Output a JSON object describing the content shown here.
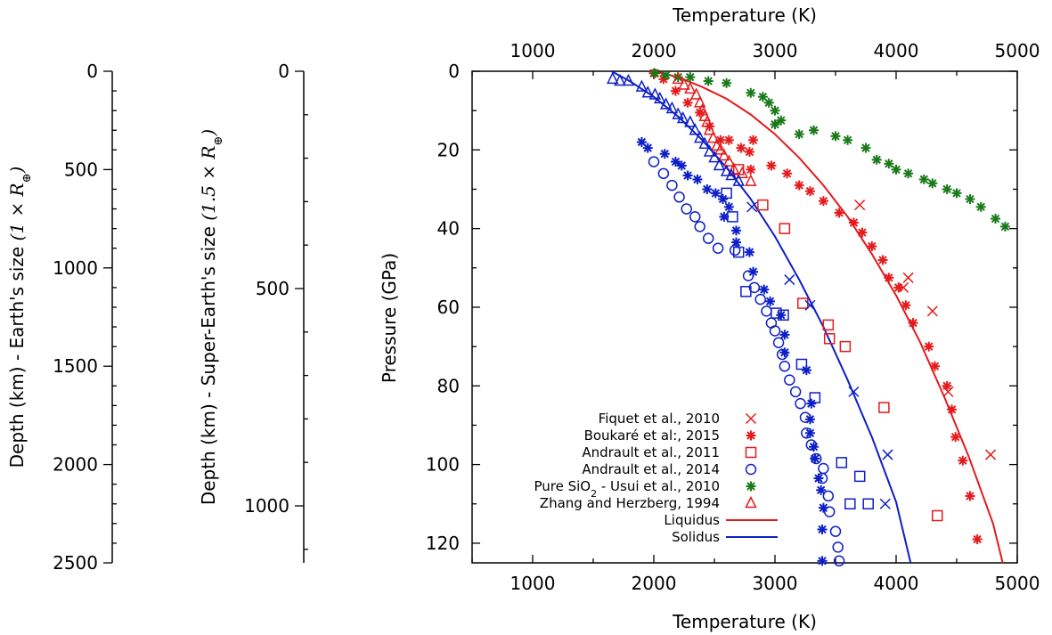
{
  "chart_data": {
    "type": "scatter",
    "xlabel_top": "Temperature (K)",
    "xlabel_bottom": "Temperature (K)",
    "ylabel": "Pressure (GPa)",
    "xlim": [
      500,
      5000
    ],
    "ylim": [
      125,
      0
    ],
    "xticks": [
      1000,
      2000,
      3000,
      4000,
      5000
    ],
    "yticks": [
      0,
      20,
      40,
      60,
      80,
      100,
      120
    ],
    "grid": false,
    "legend_position": "bottom-left",
    "depth_axes": [
      {
        "label": "Depth (km) - Earth's size",
        "label_math": "(1 × R",
        "label_sub": "⊕",
        "label_close": ")",
        "ticks": [
          0,
          500,
          1000,
          1500,
          2000,
          2500
        ],
        "range_km": [
          0,
          2500
        ],
        "minor_step": 100
      },
      {
        "label": "Depth (km) - Super-Earth's size",
        "label_math": "(1.5 × R",
        "label_sub": "⊕",
        "label_close": ")",
        "ticks": [
          0,
          500,
          1000
        ],
        "range_km": [
          0,
          1250
        ],
        "minor_step": 100
      }
    ],
    "series": [
      {
        "name": "Fiquet et al., 2010",
        "marker": "x",
        "color": "#e41a1c",
        "points": [
          [
            3700,
            34
          ],
          [
            4100,
            52.5
          ],
          [
            4060,
            55
          ],
          [
            4300,
            61
          ],
          [
            4430,
            81.5
          ],
          [
            4780,
            97.5
          ]
        ]
      },
      {
        "name": "Boukaré et al:, 2015",
        "name_parts": [
          "Boukaré et al:, 2015"
        ],
        "marker": "asterisk",
        "color": "#e41a1c",
        "points": [
          [
            2000,
            0.5
          ],
          [
            2080,
            2
          ],
          [
            2180,
            5
          ],
          [
            2280,
            8
          ],
          [
            2380,
            10.5
          ],
          [
            2460,
            14
          ],
          [
            2550,
            17.5
          ],
          [
            2620,
            17.5
          ],
          [
            2720,
            19.5
          ],
          [
            2820,
            17.5
          ],
          [
            2790,
            20.5
          ],
          [
            2970,
            24
          ],
          [
            2800,
            25
          ],
          [
            3100,
            26
          ],
          [
            3200,
            29
          ],
          [
            3290,
            30.5
          ],
          [
            3400,
            33
          ],
          [
            3530,
            36
          ],
          [
            3650,
            38.5
          ],
          [
            3720,
            41
          ],
          [
            3800,
            44.5
          ],
          [
            3890,
            48
          ],
          [
            3940,
            52.5
          ],
          [
            4020,
            55
          ],
          [
            4080,
            59.5
          ],
          [
            4140,
            64
          ],
          [
            4270,
            70
          ],
          [
            4320,
            75
          ],
          [
            4420,
            80
          ],
          [
            4460,
            86
          ],
          [
            4490,
            93
          ],
          [
            4550,
            99
          ],
          [
            4610,
            108
          ],
          [
            4670,
            119
          ]
        ]
      },
      {
        "name": "Andrault et al., 2011",
        "marker": "square",
        "color": "#e41a1c",
        "points": [
          [
            2700,
            25
          ],
          [
            2900,
            34
          ],
          [
            3080,
            40
          ],
          [
            3230,
            59
          ],
          [
            3440,
            64.5
          ],
          [
            3450,
            68
          ],
          [
            3580,
            70
          ],
          [
            3900,
            85.5
          ],
          [
            4340,
            113
          ]
        ]
      },
      {
        "name": "Andrault et al., 2014",
        "marker": "circle",
        "color": "#0d1fc7",
        "points": [
          [
            2000,
            23
          ],
          [
            2080,
            26
          ],
          [
            2150,
            29
          ],
          [
            2210,
            32
          ],
          [
            2270,
            35
          ],
          [
            2340,
            37
          ],
          [
            2380,
            39.5
          ],
          [
            2450,
            42.5
          ],
          [
            2530,
            45
          ],
          [
            2670,
            45.5
          ],
          [
            2780,
            52
          ],
          [
            2830,
            55
          ],
          [
            2880,
            58
          ],
          [
            2930,
            61
          ],
          [
            2970,
            64
          ],
          [
            3000,
            66
          ],
          [
            3030,
            69
          ],
          [
            3060,
            72
          ],
          [
            3080,
            75
          ],
          [
            3120,
            78.5
          ],
          [
            3170,
            81.5
          ],
          [
            3210,
            84.5
          ],
          [
            3250,
            88
          ],
          [
            3260,
            92
          ],
          [
            3300,
            95
          ],
          [
            3340,
            98.5
          ],
          [
            3400,
            101
          ],
          [
            3390,
            103.5
          ],
          [
            3440,
            108
          ],
          [
            3450,
            112
          ],
          [
            3500,
            117
          ],
          [
            3520,
            121
          ],
          [
            3530,
            124.5
          ]
        ]
      },
      {
        "name": "Pure SiO2 - Usui et al., 2010",
        "name_parts": [
          "Pure SiO",
          "2",
          " - Usui et al., 2010"
        ],
        "marker": "asterisk",
        "color": "#1a7a1a",
        "points": [
          [
            2010,
            0.5
          ],
          [
            2100,
            1
          ],
          [
            2200,
            1.5
          ],
          [
            2300,
            1.5
          ],
          [
            2450,
            2.5
          ],
          [
            2600,
            3
          ],
          [
            2800,
            5.5
          ],
          [
            2900,
            6.5
          ],
          [
            2950,
            8
          ],
          [
            3000,
            10
          ],
          [
            3050,
            12.5
          ],
          [
            3000,
            13.5
          ],
          [
            3200,
            16
          ],
          [
            3320,
            15
          ],
          [
            3500,
            16.5
          ],
          [
            3600,
            17.5
          ],
          [
            3750,
            19.5
          ],
          [
            3840,
            22.5
          ],
          [
            3940,
            23.5
          ],
          [
            4000,
            25
          ],
          [
            4100,
            26
          ],
          [
            4230,
            27.5
          ],
          [
            4300,
            28.5
          ],
          [
            4420,
            30
          ],
          [
            4500,
            31
          ],
          [
            4610,
            32.5
          ],
          [
            4700,
            34.5
          ],
          [
            4820,
            37.5
          ],
          [
            4900,
            39.5
          ]
        ]
      },
      {
        "name": "Zhang and Herzberg, 1994",
        "marker": "triangle",
        "color": "#e41a1c",
        "points": [
          [
            2200,
            2
          ],
          [
            2250,
            3.5
          ],
          [
            2300,
            4.5
          ],
          [
            2350,
            6
          ],
          [
            2380,
            8
          ],
          [
            2400,
            10
          ],
          [
            2420,
            11.5
          ],
          [
            2440,
            13
          ],
          [
            2460,
            15
          ],
          [
            2490,
            17
          ],
          [
            2520,
            19
          ],
          [
            2550,
            20
          ],
          [
            2580,
            21.5
          ],
          [
            2620,
            23
          ],
          [
            2660,
            25
          ],
          [
            2730,
            26
          ],
          [
            2800,
            28
          ]
        ]
      },
      {
        "name": "Zhang and Herzberg, 1994 (blue)",
        "legend": false,
        "marker": "triangle",
        "color": "#0d1fc7",
        "points": [
          [
            1660,
            2
          ],
          [
            1720,
            2.5
          ],
          [
            1790,
            2.5
          ],
          [
            1900,
            4
          ],
          [
            1950,
            5.5
          ],
          [
            2010,
            6
          ],
          [
            2050,
            7
          ],
          [
            2100,
            8.5
          ],
          [
            2150,
            9.5
          ],
          [
            2200,
            11
          ],
          [
            2240,
            12
          ],
          [
            2300,
            13
          ],
          [
            2340,
            15
          ],
          [
            2380,
            17
          ],
          [
            2420,
            18.5
          ],
          [
            2460,
            20.5
          ],
          [
            2500,
            22
          ],
          [
            2540,
            24
          ],
          [
            2600,
            25.5
          ],
          [
            2640,
            26.5
          ],
          [
            2700,
            28
          ]
        ]
      },
      {
        "name": "Blue asterisk series",
        "legend": false,
        "marker": "asterisk",
        "color": "#0d1fc7",
        "points": [
          [
            1900,
            18
          ],
          [
            1950,
            19.5
          ],
          [
            2090,
            21
          ],
          [
            2180,
            23
          ],
          [
            2230,
            24
          ],
          [
            2280,
            26.5
          ],
          [
            2360,
            27.5
          ],
          [
            2440,
            30
          ],
          [
            2510,
            31
          ],
          [
            2570,
            32.5
          ],
          [
            2620,
            34.5
          ],
          [
            2580,
            37
          ],
          [
            2680,
            40.5
          ],
          [
            2680,
            43.5
          ],
          [
            2790,
            46
          ],
          [
            2820,
            51
          ],
          [
            2910,
            55.5
          ],
          [
            2960,
            58.5
          ],
          [
            3050,
            62
          ],
          [
            3080,
            67
          ],
          [
            3080,
            71.5
          ],
          [
            3260,
            76
          ],
          [
            3300,
            84.5
          ],
          [
            3290,
            88.5
          ],
          [
            3290,
            92
          ],
          [
            3320,
            95.5
          ],
          [
            3330,
            98.5
          ],
          [
            3360,
            103.5
          ],
          [
            3380,
            106.5
          ],
          [
            3400,
            111
          ],
          [
            3390,
            116.5
          ],
          [
            3390,
            124.5
          ]
        ]
      },
      {
        "name": "Blue square series",
        "legend": false,
        "marker": "square",
        "color": "#0d1fc7",
        "points": [
          [
            2600,
            31
          ],
          [
            2650,
            37
          ],
          [
            2700,
            46
          ],
          [
            2760,
            56
          ],
          [
            3010,
            61.5
          ],
          [
            3070,
            62
          ],
          [
            3220,
            74.5
          ],
          [
            3330,
            83
          ],
          [
            3550,
            99.5
          ],
          [
            3700,
            103
          ],
          [
            3620,
            110
          ],
          [
            3770,
            110
          ]
        ]
      },
      {
        "name": "Blue x series",
        "legend": false,
        "marker": "x",
        "color": "#0d1fc7",
        "points": [
          [
            2810,
            34.5
          ],
          [
            3120,
            53
          ],
          [
            3290,
            59.5
          ],
          [
            3650,
            81.5
          ],
          [
            3930,
            97.5
          ],
          [
            3910,
            110
          ]
        ]
      }
    ],
    "curves": [
      {
        "name": "Liquidus",
        "color": "#e41a1c",
        "points": [
          [
            2000,
            0
          ],
          [
            2200,
            1.5
          ],
          [
            2400,
            4
          ],
          [
            2600,
            7
          ],
          [
            2800,
            11
          ],
          [
            3000,
            16
          ],
          [
            3200,
            22
          ],
          [
            3400,
            29
          ],
          [
            3600,
            37
          ],
          [
            3800,
            46.5
          ],
          [
            4000,
            57
          ],
          [
            4200,
            69
          ],
          [
            4400,
            83
          ],
          [
            4600,
            98
          ],
          [
            4800,
            115
          ],
          [
            4880,
            125
          ]
        ]
      },
      {
        "name": "Solidus",
        "color": "#0d1fc7",
        "points": [
          [
            1650,
            0
          ],
          [
            1800,
            2.5
          ],
          [
            2000,
            6.5
          ],
          [
            2200,
            11.5
          ],
          [
            2400,
            17.5
          ],
          [
            2600,
            24.5
          ],
          [
            2800,
            32.5
          ],
          [
            3000,
            42
          ],
          [
            3200,
            53
          ],
          [
            3400,
            65
          ],
          [
            3600,
            78.5
          ],
          [
            3800,
            93
          ],
          [
            4000,
            109.5
          ],
          [
            4120,
            125
          ]
        ]
      }
    ]
  }
}
